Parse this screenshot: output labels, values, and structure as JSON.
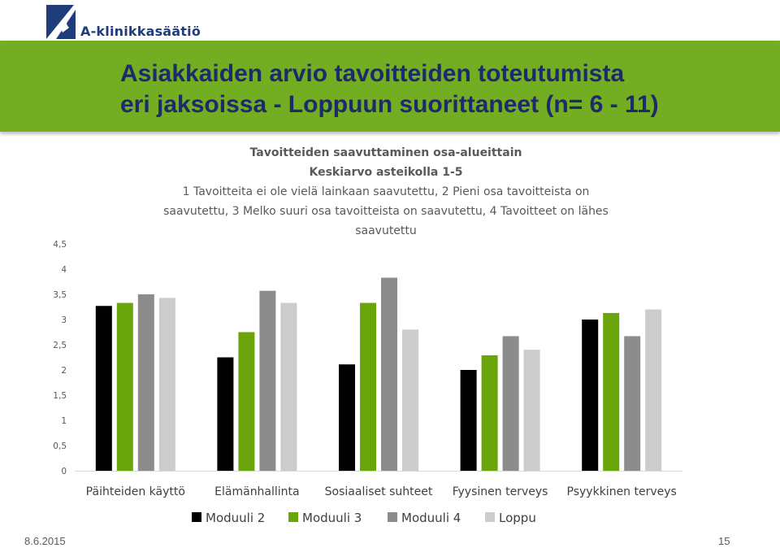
{
  "logo": {
    "text": "A-klinikkasäätiö"
  },
  "slide": {
    "title_line1": "Asiakkaiden arvio tavoitteiden toteutumista",
    "title_line2": "eri jaksoissa - Loppuun suorittaneet (n= 6 - 11)",
    "date": "8.6.2015",
    "page": "15"
  },
  "colors": {
    "banner": "#73ad21",
    "title_text": "#1d2a6b",
    "logo_blue": "#1f3d7a"
  },
  "chart_data": {
    "type": "bar",
    "title": "Tavoitteiden saavuttaminen osa-alueittain",
    "subtitle": "Keskiarvo asteikolla 1-5",
    "description_lines": [
      "1 Tavoitteita ei ole vielä lainkaan saavutettu, 2 Pieni osa tavoitteista on",
      "saavutettu, 3 Melko suuri osa tavoitteista on saavutettu, 4 Tavoitteet on lähes",
      "saavutettu"
    ],
    "categories": [
      "Päihteiden käyttö",
      "Elämänhallinta",
      "Sosiaaliset suhteet",
      "Fyysinen terveys",
      "Psyykkinen terveys"
    ],
    "series": [
      {
        "name": "Moduuli 2",
        "color": "#000000",
        "values": [
          3.27,
          2.25,
          2.11,
          2.0,
          3.0
        ]
      },
      {
        "name": "Moduuli 3",
        "color": "#6aa50a",
        "values": [
          3.33,
          2.75,
          3.33,
          2.29,
          3.13
        ]
      },
      {
        "name": "Moduuli 4",
        "color": "#8c8c8c",
        "values": [
          3.5,
          3.57,
          3.83,
          2.67,
          2.67
        ]
      },
      {
        "name": "Loppu",
        "color": "#cccccc",
        "values": [
          3.43,
          3.33,
          2.8,
          2.4,
          3.2
        ]
      }
    ],
    "ylim": [
      0,
      4.5
    ],
    "yticks": [
      "0",
      "0,5",
      "1",
      "1,5",
      "2",
      "2,5",
      "3",
      "3,5",
      "4",
      "4,5"
    ],
    "grid": false,
    "legend_position": "bottom"
  }
}
